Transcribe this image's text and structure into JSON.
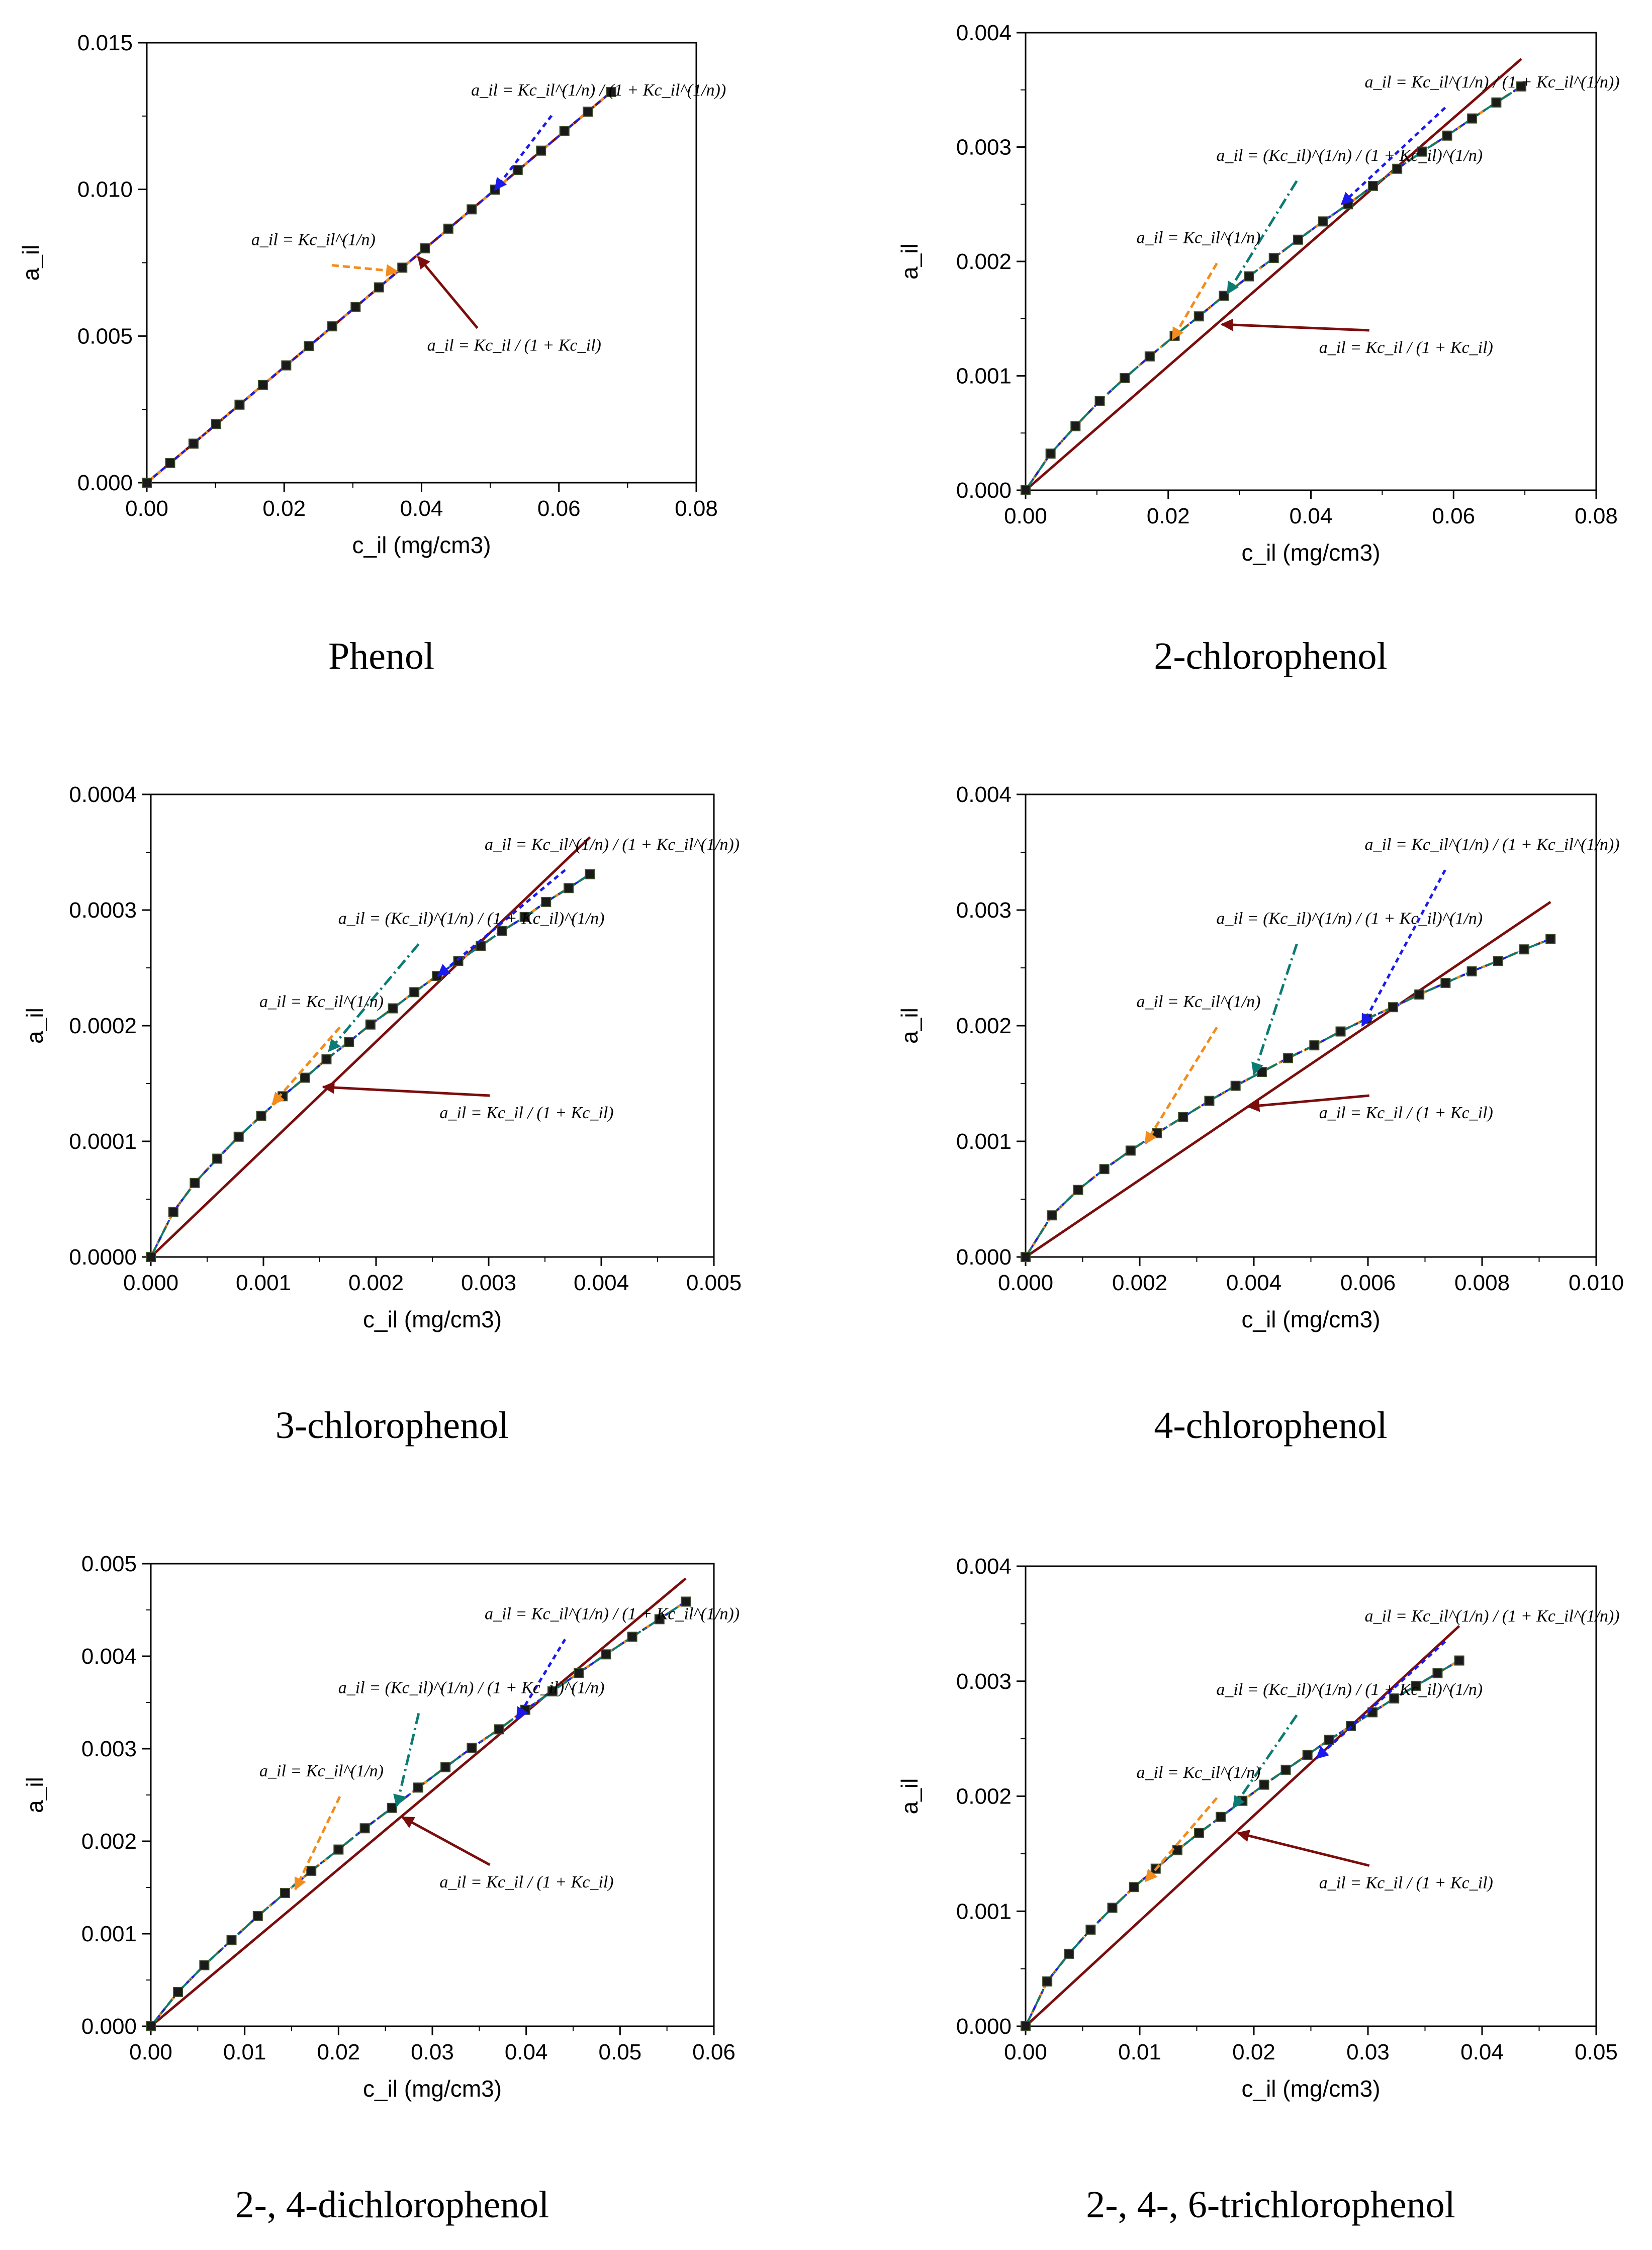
{
  "figure": {
    "colors": {
      "langmuir": "#7b0d0d",
      "freundlich": "#f28c1c",
      "sips": "#0b7b73",
      "lf": "#1a1aee",
      "marker_fill": "#1a1a1a",
      "axes": "#000000"
    },
    "equations": {
      "freundlich": "a_il = Kc_il^(1/n)",
      "langmuir": "a_il = Kc_il / (1 + Kc_il)",
      "langmuir_freundlich": "a_il = Kc_il^(1/n) / (1 + Kc_il^(1/n))",
      "sips": "a_il = (Kc_il)^(1/n) / (1 + Kc_il)^(1/n)"
    }
  },
  "chart_data": [
    {
      "type": "line",
      "caption": "Phenol",
      "xlabel": "c_il (mg/cm3)",
      "ylabel": "a_il",
      "xlim": [
        0,
        0.08
      ],
      "ylim": [
        0,
        0.015
      ],
      "xticks": [
        "0.00",
        "0.02",
        "0.04",
        "0.06",
        "0.08"
      ],
      "yticks": [
        "0.000",
        "0.005",
        "0.010",
        "0.015"
      ],
      "points": {
        "x": [
          0.0,
          0.0034,
          0.0068,
          0.0101,
          0.0135,
          0.0169,
          0.0203,
          0.0236,
          0.027,
          0.0304,
          0.0338,
          0.0372,
          0.0405,
          0.0439,
          0.0473,
          0.0507,
          0.054,
          0.0574,
          0.0608,
          0.0642,
          0.0676
        ],
        "y": [
          0.0,
          0.00067,
          0.00133,
          0.002,
          0.00266,
          0.00333,
          0.004,
          0.00466,
          0.00533,
          0.00599,
          0.00666,
          0.00733,
          0.00799,
          0.00866,
          0.00932,
          0.00999,
          0.01066,
          0.01132,
          0.01199,
          0.01265,
          0.01332
        ]
      },
      "series": [
        {
          "name": "Langmuir",
          "x": [
            0,
            0.0676
          ],
          "y": [
            0,
            0.01332
          ]
        },
        {
          "name": "Freundlich",
          "x": [
            0,
            0.0676
          ],
          "y": [
            0,
            0.01332
          ]
        },
        {
          "name": "Langmuir-Freundlich",
          "x": [
            0,
            0.0676
          ],
          "y": [
            0,
            0.01332
          ]
        }
      ],
      "annotations": [
        {
          "eq": "langmuir_freundlich",
          "target": [
            0.0507,
            0.00999
          ]
        },
        {
          "eq": "freundlich",
          "target": [
            0.0365,
            0.0072
          ]
        },
        {
          "eq": "langmuir",
          "target": [
            0.0395,
            0.0077
          ]
        }
      ]
    },
    {
      "type": "line",
      "caption": "2-chlorophenol",
      "xlabel": "c_il (mg/cm3)",
      "ylabel": "a_il",
      "xlim": [
        0,
        0.08
      ],
      "ylim": [
        0,
        0.004
      ],
      "xticks": [
        "0.00",
        "0.02",
        "0.04",
        "0.06",
        "0.08"
      ],
      "yticks": [
        "0.000",
        "0.001",
        "0.002",
        "0.003",
        "0.004"
      ],
      "points": {
        "x": [
          0.0,
          0.0035,
          0.007,
          0.0104,
          0.0139,
          0.0174,
          0.0209,
          0.0243,
          0.0278,
          0.0313,
          0.0348,
          0.0382,
          0.0417,
          0.0452,
          0.0487,
          0.0521,
          0.0556,
          0.0591,
          0.0626,
          0.066,
          0.0695
        ],
        "y": [
          0.0,
          0.00032,
          0.00056,
          0.00078,
          0.00098,
          0.00117,
          0.00135,
          0.00152,
          0.0017,
          0.00187,
          0.00203,
          0.00219,
          0.00235,
          0.0025,
          0.00266,
          0.00281,
          0.00296,
          0.0031,
          0.00325,
          0.00339,
          0.00353
        ]
      },
      "series": [
        {
          "name": "Langmuir",
          "x": [
            0,
            0.0695
          ],
          "y": [
            0,
            0.00377
          ]
        },
        {
          "name": "Freundlich",
          "ref": "points"
        },
        {
          "name": "Langmuir-Freundlich",
          "ref": "points"
        },
        {
          "name": "Sips",
          "ref": "points"
        }
      ],
      "annotations": [
        {
          "eq": "langmuir_freundlich",
          "target": [
            0.0443,
            0.0025
          ]
        },
        {
          "eq": "sips",
          "target": [
            0.0283,
            0.00172
          ]
        },
        {
          "eq": "freundlich",
          "target": [
            0.0206,
            0.00132
          ]
        },
        {
          "eq": "langmuir",
          "target": [
            0.0275,
            0.00145
          ]
        }
      ]
    },
    {
      "type": "line",
      "caption": "3-chlorophenol",
      "xlabel": "c_il (mg/cm3)",
      "ylabel": "a_il",
      "xlim": [
        0,
        0.005
      ],
      "ylim": [
        0,
        0.0004
      ],
      "xticks": [
        "0.000",
        "0.001",
        "0.002",
        "0.003",
        "0.004",
        "0.005"
      ],
      "yticks": [
        "0.0000",
        "0.0001",
        "0.0002",
        "0.0003",
        "0.0004"
      ],
      "points": {
        "x": [
          0.0,
          0.0002,
          0.00039,
          0.00059,
          0.00078,
          0.00098,
          0.00117,
          0.00137,
          0.00156,
          0.00176,
          0.00195,
          0.00215,
          0.00234,
          0.00254,
          0.00273,
          0.00293,
          0.00312,
          0.00332,
          0.00351,
          0.00371,
          0.0039
        ],
        "y": [
          0.0,
          3.9e-05,
          6.4e-05,
          8.5e-05,
          0.000104,
          0.000122,
          0.000139,
          0.000155,
          0.000171,
          0.000186,
          0.000201,
          0.000215,
          0.000229,
          0.000243,
          0.000256,
          0.000269,
          0.000282,
          0.000294,
          0.000307,
          0.000319,
          0.000331
        ]
      },
      "series": [
        {
          "name": "Langmuir",
          "x": [
            0,
            0.0039
          ],
          "y": [
            0,
            0.000363
          ]
        },
        {
          "name": "Freundlich",
          "ref": "points"
        },
        {
          "name": "Langmuir-Freundlich",
          "ref": "points"
        },
        {
          "name": "Sips",
          "ref": "points"
        }
      ],
      "annotations": [
        {
          "eq": "langmuir_freundlich",
          "target": [
            0.00255,
            0.000243
          ]
        },
        {
          "eq": "sips",
          "target": [
            0.00158,
            0.000178
          ]
        },
        {
          "eq": "freundlich",
          "target": [
            0.00108,
            0.000132
          ]
        },
        {
          "eq": "langmuir",
          "target": [
            0.00153,
            0.000147
          ]
        }
      ]
    },
    {
      "type": "line",
      "caption": "4-chlorophenol",
      "xlabel": "c_il (mg/cm3)",
      "ylabel": "a_il",
      "xlim": [
        0,
        0.01
      ],
      "ylim": [
        0,
        0.004
      ],
      "xticks": [
        "0.000",
        "0.002",
        "0.004",
        "0.006",
        "0.008",
        "0.010"
      ],
      "yticks": [
        "0.000",
        "0.001",
        "0.002",
        "0.003",
        "0.004"
      ],
      "points": {
        "x": [
          0.0,
          0.00046,
          0.00092,
          0.00138,
          0.00184,
          0.0023,
          0.00276,
          0.00322,
          0.00368,
          0.00414,
          0.0046,
          0.00506,
          0.00552,
          0.00598,
          0.00644,
          0.0069,
          0.00736,
          0.00782,
          0.00828,
          0.00874,
          0.0092
        ],
        "y": [
          0.0,
          0.00036,
          0.00058,
          0.00076,
          0.00092,
          0.00107,
          0.00121,
          0.00135,
          0.00148,
          0.0016,
          0.00172,
          0.00183,
          0.00195,
          0.00206,
          0.00216,
          0.00227,
          0.00237,
          0.00247,
          0.00256,
          0.00266,
          0.00275
        ]
      },
      "series": [
        {
          "name": "Langmuir",
          "x": [
            0,
            0.0092
          ],
          "y": [
            0,
            0.00307
          ]
        },
        {
          "name": "Freundlich",
          "ref": "points"
        },
        {
          "name": "Langmuir-Freundlich",
          "ref": "points"
        },
        {
          "name": "Sips",
          "ref": "points"
        }
      ],
      "annotations": [
        {
          "eq": "langmuir_freundlich",
          "target": [
            0.0059,
            0.002
          ]
        },
        {
          "eq": "sips",
          "target": [
            0.004,
            0.00158
          ]
        },
        {
          "eq": "freundlich",
          "target": [
            0.0021,
            0.00098
          ]
        },
        {
          "eq": "langmuir",
          "target": [
            0.0039,
            0.0013
          ]
        }
      ]
    },
    {
      "type": "line",
      "caption": "2-, 4-dichlorophenol",
      "xlabel": "c_il (mg/cm3)",
      "ylabel": "a_il",
      "xlim": [
        0,
        0.06
      ],
      "ylim": [
        0,
        0.005
      ],
      "xticks": [
        "0.00",
        "0.01",
        "0.02",
        "0.03",
        "0.04",
        "0.05",
        "0.06"
      ],
      "yticks": [
        "0.000",
        "0.001",
        "0.002",
        "0.003",
        "0.004",
        "0.005"
      ],
      "points": {
        "x": [
          0.0,
          0.0029,
          0.0057,
          0.0086,
          0.0114,
          0.0143,
          0.0171,
          0.02,
          0.0228,
          0.0257,
          0.0285,
          0.0314,
          0.0342,
          0.0371,
          0.0399,
          0.0428,
          0.0456,
          0.0485,
          0.0513,
          0.0542,
          0.057
        ],
        "y": [
          0.0,
          0.00037,
          0.00066,
          0.00093,
          0.00119,
          0.00144,
          0.00168,
          0.00191,
          0.00214,
          0.00236,
          0.00258,
          0.0028,
          0.00301,
          0.00321,
          0.00342,
          0.00362,
          0.00382,
          0.00402,
          0.00421,
          0.0044,
          0.00459
        ]
      },
      "series": [
        {
          "name": "Langmuir",
          "x": [
            0,
            0.057
          ],
          "y": [
            0,
            0.00484
          ]
        },
        {
          "name": "Freundlich",
          "ref": "points"
        },
        {
          "name": "Langmuir-Freundlich",
          "ref": "points"
        },
        {
          "name": "Sips",
          "ref": "points"
        }
      ],
      "annotations": [
        {
          "eq": "langmuir_freundlich",
          "target": [
            0.039,
            0.00332
          ]
        },
        {
          "eq": "sips",
          "target": [
            0.0262,
            0.00238
          ]
        },
        {
          "eq": "freundlich",
          "target": [
            0.0154,
            0.00148
          ]
        },
        {
          "eq": "langmuir",
          "target": [
            0.0268,
            0.00226
          ]
        }
      ]
    },
    {
      "type": "line",
      "caption": "2-, 4-, 6-trichlorophenol",
      "xlabel": "c_il (mg/cm3)",
      "ylabel": "a_il",
      "xlim": [
        0,
        0.05
      ],
      "ylim": [
        0,
        0.004
      ],
      "xticks": [
        "0.00",
        "0.01",
        "0.02",
        "0.03",
        "0.04",
        "0.05"
      ],
      "yticks": [
        "0.000",
        "0.001",
        "0.002",
        "0.003",
        "0.004"
      ],
      "points": {
        "x": [
          0.0,
          0.0019,
          0.0038,
          0.0057,
          0.0076,
          0.0095,
          0.0114,
          0.0133,
          0.0152,
          0.0171,
          0.019,
          0.0209,
          0.0228,
          0.0247,
          0.0266,
          0.0285,
          0.0304,
          0.0323,
          0.0342,
          0.0361,
          0.038
        ],
        "y": [
          0.0,
          0.00039,
          0.00063,
          0.00084,
          0.00103,
          0.00121,
          0.00137,
          0.00153,
          0.00168,
          0.00182,
          0.00196,
          0.0021,
          0.00223,
          0.00236,
          0.00249,
          0.00261,
          0.00273,
          0.00285,
          0.00296,
          0.00307,
          0.00318
        ]
      },
      "series": [
        {
          "name": "Langmuir",
          "x": [
            0,
            0.038
          ],
          "y": [
            0,
            0.00348
          ]
        },
        {
          "name": "Freundlich",
          "ref": "points"
        },
        {
          "name": "Langmuir-Freundlich",
          "ref": "points"
        },
        {
          "name": "Sips",
          "ref": "points"
        }
      ],
      "annotations": [
        {
          "eq": "langmuir_freundlich",
          "target": [
            0.0255,
            0.00233
          ]
        },
        {
          "eq": "sips",
          "target": [
            0.0182,
            0.0019
          ]
        },
        {
          "eq": "freundlich",
          "target": [
            0.0105,
            0.00126
          ]
        },
        {
          "eq": "langmuir",
          "target": [
            0.0186,
            0.00168
          ]
        }
      ]
    }
  ]
}
